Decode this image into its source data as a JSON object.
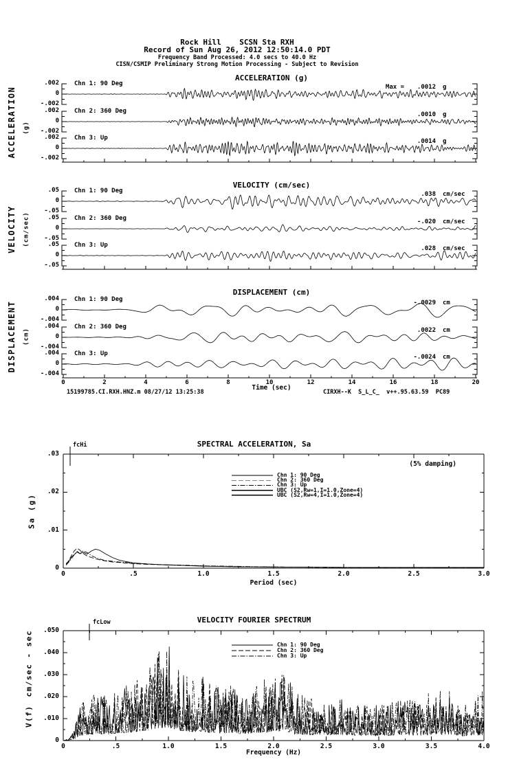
{
  "header": {
    "line1": "Rock Hill    SCSN Sta RXH",
    "line2": "Record of Sun Aug 26, 2012 12:50:14.0 PDT",
    "line3": "Frequency Band Processed: 4.0 secs to 40.0 Hz",
    "line4": "CISN/CSMIP Preliminary Strong Motion Processing - Subject to Revision"
  },
  "footer": {
    "left": "15199785.CI.RXH.HNZ.m 08/27/12 13:25:38",
    "right": "CIRXH--K  S_L_C_  v++.95.63.59  PC89"
  },
  "chart_data": [
    {
      "id": "acceleration",
      "type": "line",
      "title": "ACCELERATION (g)",
      "ylabel": "ACCELERATION",
      "ylabel_units": "(g)",
      "xlim": [
        0,
        20
      ],
      "x_major_step": 2,
      "x_minor_step": 1,
      "rows": [
        {
          "channel": "Chn 1: 90 Deg",
          "ylim": [
            -0.002,
            0.002
          ],
          "ytick_labels": [
            ".002",
            "0",
            "-.002"
          ],
          "max_prefix": "Max =",
          "max_label": ".0012",
          "max_value": 0.0012,
          "units": "g"
        },
        {
          "channel": "Chn 2: 360 Deg",
          "ylim": [
            -0.002,
            0.002
          ],
          "ytick_labels": [
            ".002",
            "0",
            "-.002"
          ],
          "max_label": ".0010",
          "max_value": 0.001,
          "units": "g"
        },
        {
          "channel": "Chn 3: Up",
          "ylim": [
            -0.002,
            0.002
          ],
          "ytick_labels": [
            ".002",
            "0",
            "-.002"
          ],
          "max_label": ".0014",
          "max_value": 0.0014,
          "units": "g"
        }
      ]
    },
    {
      "id": "velocity",
      "type": "line",
      "title": "VELOCITY (cm/sec)",
      "ylabel": "VELOCITY",
      "ylabel_units": "(cm/sec)",
      "xlim": [
        0,
        20
      ],
      "x_major_step": 2,
      "x_minor_step": 1,
      "rows": [
        {
          "channel": "Chn 1: 90 Deg",
          "ylim": [
            -0.05,
            0.05
          ],
          "ytick_labels": [
            ".05",
            "0",
            "-.05"
          ],
          "max_label": ".038",
          "max_value": 0.038,
          "units": "cm/sec"
        },
        {
          "channel": "Chn 2: 360 Deg",
          "ylim": [
            -0.05,
            0.05
          ],
          "ytick_labels": [
            ".05",
            "0",
            "-.05"
          ],
          "max_label": "-.020",
          "max_value": -0.02,
          "units": "cm/sec"
        },
        {
          "channel": "Chn 3: Up",
          "ylim": [
            -0.05,
            0.05
          ],
          "ytick_labels": [
            ".05",
            "0",
            "-.05"
          ],
          "max_label": ".028",
          "max_value": 0.028,
          "units": "cm/sec"
        }
      ]
    },
    {
      "id": "displacement",
      "type": "line",
      "title": "DISPLACEMENT (cm)",
      "ylabel": "DISPLACEMENT",
      "ylabel_units": "(cm)",
      "xlabel": "Time (sec)",
      "xlim": [
        0,
        20
      ],
      "x_major_step": 2,
      "x_minor_step": 1,
      "x_tick_labels": [
        "0",
        "2",
        "4",
        "6",
        "8",
        "10",
        "12",
        "14",
        "16",
        "18",
        "20"
      ],
      "rows": [
        {
          "channel": "Chn 1: 90 Deg",
          "ylim": [
            -0.004,
            0.004
          ],
          "ytick_labels": [
            ".004",
            "0",
            "-.004"
          ],
          "max_label": "-.0029",
          "max_value": -0.0029,
          "units": "cm"
        },
        {
          "channel": "Chn 2: 360 Deg",
          "ylim": [
            -0.004,
            0.004
          ],
          "ytick_labels": [
            ".004",
            "0",
            "-.004"
          ],
          "max_label": ".0022",
          "max_value": 0.0022,
          "units": "cm"
        },
        {
          "channel": "Chn 3: Up",
          "ylim": [
            -0.004,
            0.004
          ],
          "ytick_labels": [
            ".004",
            "0",
            "-.004"
          ],
          "max_label": "-.0024",
          "max_value": -0.0024,
          "units": "cm"
        }
      ]
    },
    {
      "id": "spectral_acceleration",
      "type": "line",
      "title": "SPECTRAL ACCELERATION, Sa",
      "annotation": "(5% damping)",
      "fc_label": "fcHi",
      "xlabel": "Period (sec)",
      "ylabel": "Sa (g)",
      "xlim": [
        0,
        3.0
      ],
      "ylim": [
        0,
        0.03
      ],
      "x_tick_labels": [
        "0",
        ".5",
        "1.0",
        "1.5",
        "2.0",
        "2.5",
        "3.0"
      ],
      "y_tick_labels": [
        ".03",
        ".02",
        ".01",
        "0"
      ],
      "legend": [
        {
          "label": "Chn 1: 90 Deg",
          "style": "solid"
        },
        {
          "label": "Chn 2: 360 Deg",
          "style": "dash"
        },
        {
          "label": "Chn 3: Up",
          "style": "dashdot"
        },
        {
          "label": "UBC (S2,Rw=1,I=1.0,Zone=4)",
          "style": "solid"
        },
        {
          "label": "UBC (S2,Rw=4,I=1.0,Zone=4)",
          "style": "solid"
        }
      ],
      "x": [
        0.02,
        0.04,
        0.06,
        0.08,
        0.1,
        0.12,
        0.14,
        0.17,
        0.2,
        0.23,
        0.26,
        0.3,
        0.35,
        0.4,
        0.45,
        0.5,
        0.6,
        0.7,
        0.85,
        1.0,
        1.2,
        1.5,
        2.0,
        2.5,
        3.0
      ],
      "series": [
        {
          "name": "Chn 1: 90 Deg",
          "style": "solid",
          "y": [
            0.0012,
            0.0018,
            0.003,
            0.0036,
            0.0044,
            0.0038,
            0.0042,
            0.0037,
            0.0045,
            0.005,
            0.0047,
            0.0038,
            0.0028,
            0.0021,
            0.0017,
            0.0014,
            0.0011,
            0.0009,
            0.0007,
            0.0005,
            0.0004,
            0.0003,
            0.0002,
            0.0002,
            0.0002
          ]
        },
        {
          "name": "Chn 2: 360 Deg",
          "style": "dash",
          "y": [
            0.001,
            0.002,
            0.0034,
            0.0046,
            0.0052,
            0.0047,
            0.0039,
            0.0032,
            0.0028,
            0.0025,
            0.0022,
            0.0019,
            0.0016,
            0.0015,
            0.0013,
            0.0012,
            0.001,
            0.0009,
            0.0007,
            0.0006,
            0.0004,
            0.0003,
            0.0002,
            0.0002,
            0.0001
          ]
        },
        {
          "name": "Chn 3: Up",
          "style": "dashdot",
          "y": [
            0.0008,
            0.0016,
            0.0026,
            0.0036,
            0.0042,
            0.0038,
            0.0045,
            0.0041,
            0.0033,
            0.0028,
            0.0024,
            0.002,
            0.0018,
            0.0016,
            0.0015,
            0.0013,
            0.0011,
            0.0009,
            0.0008,
            0.0006,
            0.0005,
            0.0003,
            0.0002,
            0.0002,
            0.0001
          ]
        }
      ]
    },
    {
      "id": "velocity_fourier_spectrum",
      "type": "line",
      "title": "VELOCITY FOURIER SPECTRUM",
      "fc_label": "fcLow",
      "xlabel": "Frequency (Hz)",
      "ylabel": "V(f)",
      "ylabel_units": "cm/sec - sec",
      "xlim": [
        0,
        4.0
      ],
      "ylim": [
        0,
        0.05
      ],
      "x_tick_labels": [
        "0",
        ".5",
        "1.0",
        "1.5",
        "2.0",
        "2.5",
        "3.0",
        "3.5",
        "4.0"
      ],
      "y_tick_labels": [
        ".050",
        ".040",
        ".030",
        ".020",
        ".010",
        "0"
      ],
      "legend": [
        {
          "label": "Chn 1: 90 Deg",
          "style": "solid"
        },
        {
          "label": "Chn 2: 360 Deg",
          "style": "dash"
        },
        {
          "label": "Chn 3: Up",
          "style": "dashdot"
        }
      ],
      "envelope": [
        [
          0.0,
          0.0
        ],
        [
          0.05,
          0.0005
        ],
        [
          0.1,
          0.003
        ],
        [
          0.15,
          0.008
        ],
        [
          0.2,
          0.01
        ],
        [
          0.3,
          0.012
        ],
        [
          0.4,
          0.011
        ],
        [
          0.5,
          0.013
        ],
        [
          0.6,
          0.014
        ],
        [
          0.7,
          0.016
        ],
        [
          0.8,
          0.018
        ],
        [
          0.9,
          0.022
        ],
        [
          1.0,
          0.024
        ],
        [
          1.1,
          0.018
        ],
        [
          1.2,
          0.016
        ],
        [
          1.3,
          0.017
        ],
        [
          1.4,
          0.014
        ],
        [
          1.5,
          0.013
        ],
        [
          1.6,
          0.014
        ],
        [
          1.7,
          0.012
        ],
        [
          1.8,
          0.013
        ],
        [
          1.9,
          0.015
        ],
        [
          2.0,
          0.016
        ],
        [
          2.1,
          0.018
        ],
        [
          2.2,
          0.012
        ],
        [
          2.4,
          0.01
        ],
        [
          2.6,
          0.011
        ],
        [
          2.8,
          0.009
        ],
        [
          3.0,
          0.009
        ],
        [
          3.2,
          0.01
        ],
        [
          3.4,
          0.009
        ],
        [
          3.6,
          0.011
        ],
        [
          3.8,
          0.008
        ],
        [
          4.0,
          0.01
        ]
      ],
      "peak": {
        "freq": 0.95,
        "value": 0.033
      }
    }
  ]
}
